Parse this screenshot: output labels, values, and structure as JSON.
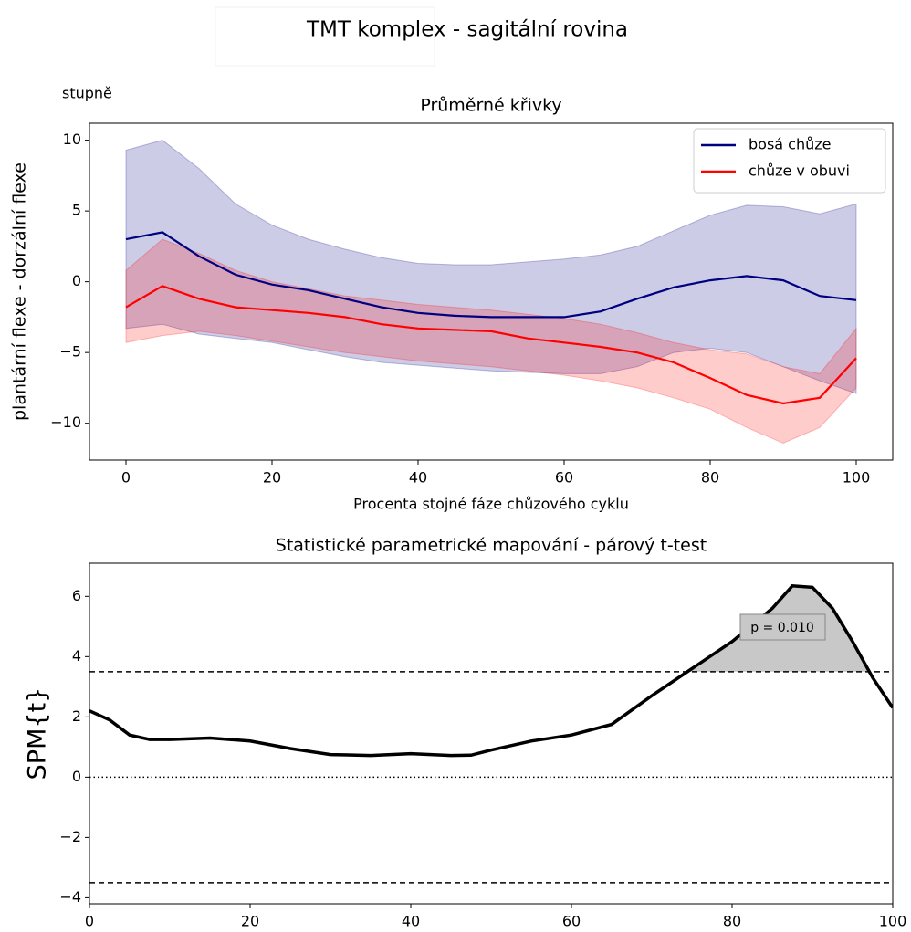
{
  "chart_data": [
    {
      "type": "line",
      "suptitle": "TMT komplex - sagitální rovina",
      "annotation": "stupně",
      "title": "Průměrné křivky",
      "xlabel": "Procenta stojné fáze chůzového cyklu",
      "ylabel": "plantární flexe - dorzální flexe",
      "x": [
        0,
        5,
        10,
        15,
        20,
        25,
        30,
        35,
        40,
        45,
        50,
        55,
        60,
        65,
        70,
        75,
        80,
        85,
        90,
        95,
        100
      ],
      "series": [
        {
          "name": "bosá chůze",
          "color": "#000080",
          "values": [
            3.0,
            3.5,
            1.8,
            0.5,
            -0.2,
            -0.6,
            -1.2,
            -1.8,
            -2.2,
            -2.4,
            -2.5,
            -2.5,
            -2.5,
            -2.1,
            -1.2,
            -0.4,
            0.1,
            0.4,
            0.1,
            -1.0,
            -1.3
          ],
          "upper": [
            9.3,
            10.0,
            8.0,
            5.5,
            4.0,
            3.0,
            2.3,
            1.7,
            1.3,
            1.2,
            1.2,
            1.4,
            1.6,
            1.9,
            2.5,
            3.6,
            4.7,
            5.4,
            5.3,
            4.8,
            5.5
          ],
          "lower": [
            -3.3,
            -3.0,
            -3.7,
            -4.0,
            -4.3,
            -4.8,
            -5.3,
            -5.7,
            -5.9,
            -6.1,
            -6.3,
            -6.4,
            -6.5,
            -6.5,
            -6.0,
            -5.0,
            -4.7,
            -5.0,
            -6.0,
            -7.0,
            -7.9
          ]
        },
        {
          "name": "chůze v obuvi",
          "color": "#ff0000",
          "values": [
            -1.8,
            -0.3,
            -1.2,
            -1.8,
            -2.0,
            -2.2,
            -2.5,
            -3.0,
            -3.3,
            -3.4,
            -3.5,
            -4.0,
            -4.3,
            -4.6,
            -5.0,
            -5.7,
            -6.8,
            -8.0,
            -8.6,
            -8.2,
            -5.4
          ],
          "upper": [
            0.8,
            3.0,
            2.0,
            0.8,
            0.0,
            -0.5,
            -1.0,
            -1.3,
            -1.6,
            -1.8,
            -2.0,
            -2.3,
            -2.6,
            -3.0,
            -3.6,
            -4.3,
            -4.8,
            -5.1,
            -6.0,
            -6.5,
            -3.3
          ],
          "lower": [
            -4.3,
            -3.8,
            -3.5,
            -3.8,
            -4.2,
            -4.6,
            -5.0,
            -5.3,
            -5.6,
            -5.8,
            -6.0,
            -6.3,
            -6.6,
            -7.0,
            -7.5,
            -8.2,
            -9.0,
            -10.3,
            -11.4,
            -10.3,
            -7.5
          ]
        }
      ],
      "xlim": [
        -5,
        105
      ],
      "ylim": [
        -12.6,
        11.2
      ],
      "xticks": [
        0,
        20,
        40,
        60,
        80,
        100
      ],
      "yticks": [
        {
          "value": -10,
          "label": "−10"
        },
        {
          "value": -5,
          "label": "−5"
        },
        0,
        5,
        10
      ],
      "legend": "upper right",
      "grid": false
    },
    {
      "type": "line",
      "title": "Statistické parametrické mapování - párový t-test",
      "ylabel": "SPM{t}",
      "annotation": "p = 0.010",
      "x": [
        0,
        2.5,
        5,
        7.5,
        10,
        15,
        20,
        25,
        30,
        35,
        40,
        45,
        47.5,
        50,
        55,
        60,
        65,
        70,
        75,
        80,
        85,
        87.5,
        90,
        92.5,
        95,
        97.5,
        100
      ],
      "series": [
        {
          "color": "#000000",
          "values": [
            2.2,
            1.9,
            1.4,
            1.25,
            1.25,
            1.3,
            1.2,
            0.95,
            0.75,
            0.72,
            0.78,
            0.72,
            0.73,
            0.9,
            1.2,
            1.4,
            1.75,
            2.7,
            3.6,
            4.5,
            5.6,
            6.35,
            6.3,
            5.6,
            4.5,
            3.3,
            2.3
          ]
        }
      ],
      "thresholds": [
        3.5,
        -3.5
      ],
      "reference_line": 0,
      "cluster_color": "#c8c8c8",
      "xlim": [
        0,
        100
      ],
      "ylim": [
        -4.2,
        7.1
      ],
      "xticks": [
        0,
        20,
        40,
        60,
        80,
        100
      ],
      "yticks": [
        {
          "value": -4,
          "label": "−4"
        },
        {
          "value": -2,
          "label": "−2"
        },
        0,
        2,
        4,
        6
      ],
      "grid": false
    }
  ]
}
